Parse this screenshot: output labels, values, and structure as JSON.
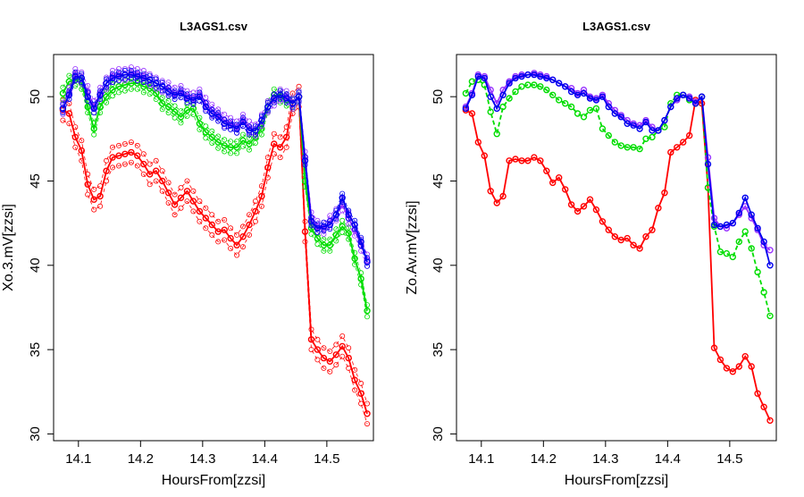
{
  "chart_data": [
    {
      "type": "line",
      "title": "L3AGS1.csv",
      "xlabel": "HoursFrom[zzsi]",
      "ylabel": "Xo.3.mV[zzsi]",
      "xlim": [
        14.06,
        14.575
      ],
      "ylim": [
        29.6,
        52.5
      ],
      "xticks": [
        14.1,
        14.2,
        14.3,
        14.4,
        14.5
      ],
      "xtick_labels": [
        "14.1",
        "14.2",
        "14.3",
        "14.4",
        "14.5"
      ],
      "yticks": [
        30,
        35,
        40,
        45,
        50
      ],
      "ytick_labels": [
        "30",
        "35",
        "40",
        "45",
        "50"
      ],
      "grid": false,
      "legend": "none",
      "x": [
        14.075,
        14.085,
        14.095,
        14.105,
        14.115,
        14.125,
        14.135,
        14.145,
        14.155,
        14.165,
        14.175,
        14.185,
        14.195,
        14.205,
        14.215,
        14.225,
        14.235,
        14.245,
        14.255,
        14.265,
        14.275,
        14.285,
        14.295,
        14.305,
        14.315,
        14.325,
        14.335,
        14.345,
        14.355,
        14.365,
        14.375,
        14.385,
        14.395,
        14.405,
        14.415,
        14.425,
        14.435,
        14.445,
        14.455,
        14.465,
        14.475,
        14.485,
        14.495,
        14.505,
        14.515,
        14.525,
        14.535,
        14.545,
        14.555,
        14.565
      ],
      "series": [
        {
          "color": "#ff0000",
          "band": 0.6,
          "values": [
            49.2,
            49.0,
            47.6,
            46.8,
            44.8,
            43.9,
            44.1,
            45.6,
            46.4,
            46.5,
            46.6,
            46.7,
            46.5,
            46.0,
            45.4,
            45.6,
            45.0,
            44.3,
            43.6,
            44.0,
            44.4,
            43.8,
            43.2,
            42.8,
            42.4,
            42.0,
            42.1,
            41.6,
            41.2,
            41.7,
            42.4,
            43.2,
            44.1,
            45.8,
            47.2,
            47.0,
            47.6,
            49.6,
            50.0,
            42.0,
            35.6,
            35.0,
            34.5,
            34.3,
            34.7,
            35.2,
            34.5,
            33.2,
            32.4,
            31.2
          ]
        },
        {
          "color": "#00dd00",
          "band": 0.35,
          "values": [
            50.2,
            50.9,
            51.0,
            50.8,
            49.4,
            48.1,
            49.4,
            50.0,
            50.4,
            50.6,
            50.7,
            50.8,
            50.8,
            50.6,
            50.5,
            50.2,
            49.6,
            49.4,
            49.1,
            48.8,
            49.2,
            49.3,
            48.4,
            47.9,
            47.6,
            47.3,
            47.1,
            47.0,
            47.0,
            47.4,
            47.2,
            47.6,
            48.1,
            49.4,
            50.1,
            50.0,
            49.8,
            49.6,
            50.0,
            45.0,
            42.2,
            41.6,
            41.2,
            41.2,
            41.8,
            42.3,
            41.9,
            40.4,
            39.2,
            37.3
          ]
        },
        {
          "color": "#9933ff",
          "band": 0.35,
          "values": [
            49.3,
            50.2,
            51.3,
            51.1,
            50.3,
            49.4,
            50.2,
            50.8,
            51.2,
            51.3,
            51.3,
            51.4,
            51.3,
            51.2,
            51.0,
            50.8,
            50.6,
            50.5,
            50.2,
            50.3,
            50.0,
            49.9,
            50.1,
            49.6,
            49.2,
            48.9,
            48.6,
            48.4,
            48.2,
            48.6,
            48.2,
            48.0,
            48.6,
            49.4,
            49.8,
            50.1,
            50.0,
            49.6,
            50.0,
            46.4,
            42.8,
            42.3,
            42.2,
            42.6,
            43.0,
            43.6,
            42.8,
            42.1,
            41.2,
            40.3
          ]
        },
        {
          "color": "#0000ee",
          "band": 0.25,
          "values": [
            49.3,
            50.1,
            51.2,
            51.1,
            50.0,
            49.3,
            50.1,
            50.8,
            51.1,
            51.2,
            51.3,
            51.3,
            51.2,
            51.1,
            51.0,
            50.8,
            50.6,
            50.3,
            50.1,
            50.2,
            49.9,
            49.8,
            50.0,
            49.4,
            49.0,
            48.8,
            48.4,
            48.3,
            48.1,
            48.5,
            48.0,
            48.0,
            48.6,
            49.4,
            49.9,
            50.1,
            49.9,
            49.6,
            50.0,
            46.2,
            42.6,
            42.2,
            42.3,
            42.4,
            43.0,
            44.0,
            43.0,
            42.4,
            41.4,
            40.2
          ]
        }
      ]
    },
    {
      "type": "line",
      "title": "L3AGS1.csv",
      "xlabel": "HoursFrom[zzsi]",
      "ylabel": "Zo.Av.mV[zzsi]",
      "xlim": [
        14.06,
        14.575
      ],
      "ylim": [
        29.6,
        52.5
      ],
      "xticks": [
        14.1,
        14.2,
        14.3,
        14.4,
        14.5
      ],
      "xtick_labels": [
        "14.1",
        "14.2",
        "14.3",
        "14.4",
        "14.5"
      ],
      "yticks": [
        30,
        35,
        40,
        45,
        50
      ],
      "ytick_labels": [
        "30",
        "35",
        "40",
        "45",
        "50"
      ],
      "grid": false,
      "legend": "none",
      "x": [
        14.075,
        14.085,
        14.095,
        14.105,
        14.115,
        14.125,
        14.135,
        14.145,
        14.155,
        14.165,
        14.175,
        14.185,
        14.195,
        14.205,
        14.215,
        14.225,
        14.235,
        14.245,
        14.255,
        14.265,
        14.275,
        14.285,
        14.295,
        14.305,
        14.315,
        14.325,
        14.335,
        14.345,
        14.355,
        14.365,
        14.375,
        14.385,
        14.395,
        14.405,
        14.415,
        14.425,
        14.435,
        14.445,
        14.455,
        14.465,
        14.475,
        14.485,
        14.495,
        14.505,
        14.515,
        14.525,
        14.535,
        14.545,
        14.555,
        14.565
      ],
      "series": [
        {
          "color": "#ff0000",
          "style": "solid",
          "values": [
            49.2,
            49.0,
            47.3,
            46.5,
            44.4,
            43.7,
            44.1,
            46.2,
            46.3,
            46.2,
            46.2,
            46.4,
            46.2,
            45.6,
            44.9,
            45.2,
            44.5,
            43.6,
            43.2,
            43.5,
            43.9,
            43.3,
            42.6,
            42.1,
            41.7,
            41.5,
            41.6,
            41.2,
            41.0,
            41.7,
            42.1,
            43.4,
            44.3,
            46.7,
            47.0,
            47.3,
            47.7,
            49.8,
            49.6,
            44.6,
            35.1,
            34.4,
            33.9,
            33.7,
            34.0,
            34.6,
            34.0,
            32.4,
            31.6,
            30.8
          ]
        },
        {
          "color": "#00dd00",
          "style": "dashed",
          "values": [
            50.2,
            50.9,
            51.0,
            50.7,
            49.1,
            47.8,
            49.4,
            49.9,
            50.3,
            50.6,
            50.7,
            50.7,
            50.6,
            50.4,
            50.1,
            49.8,
            49.6,
            49.4,
            49.0,
            48.8,
            49.2,
            49.3,
            48.1,
            47.7,
            47.3,
            47.1,
            47.0,
            47.0,
            46.9,
            47.5,
            47.6,
            48.0,
            48.2,
            49.6,
            50.1,
            50.1,
            49.8,
            49.6,
            50.0,
            44.6,
            42.3,
            40.8,
            40.7,
            40.5,
            41.4,
            42.0,
            41.0,
            39.6,
            38.4,
            37.0
          ]
        },
        {
          "color": "#9933ff",
          "style": "solid",
          "values": [
            49.4,
            50.2,
            51.3,
            51.2,
            50.4,
            49.6,
            50.4,
            50.9,
            51.2,
            51.3,
            51.3,
            51.4,
            51.3,
            51.2,
            51.0,
            50.8,
            50.6,
            50.5,
            50.2,
            50.4,
            50.0,
            49.9,
            50.1,
            49.6,
            49.2,
            48.9,
            48.6,
            48.4,
            48.3,
            48.6,
            48.2,
            48.0,
            48.6,
            49.4,
            49.8,
            50.1,
            50.0,
            49.7,
            50.0,
            46.4,
            42.8,
            42.3,
            42.2,
            42.5,
            43.0,
            43.5,
            42.8,
            42.1,
            41.2,
            40.9
          ]
        },
        {
          "color": "#0000ee",
          "style": "solid",
          "values": [
            49.3,
            50.1,
            51.2,
            51.1,
            50.0,
            49.3,
            50.1,
            50.8,
            51.1,
            51.2,
            51.3,
            51.3,
            51.2,
            51.1,
            51.0,
            50.8,
            50.6,
            50.3,
            50.1,
            50.2,
            49.9,
            49.8,
            50.0,
            49.4,
            49.0,
            48.8,
            48.4,
            48.3,
            48.1,
            48.5,
            48.0,
            48.0,
            48.6,
            49.4,
            49.9,
            50.1,
            49.9,
            49.6,
            50.0,
            46.0,
            42.4,
            42.3,
            42.4,
            42.5,
            43.1,
            44.0,
            43.0,
            42.2,
            41.4,
            40.0
          ]
        }
      ]
    }
  ]
}
